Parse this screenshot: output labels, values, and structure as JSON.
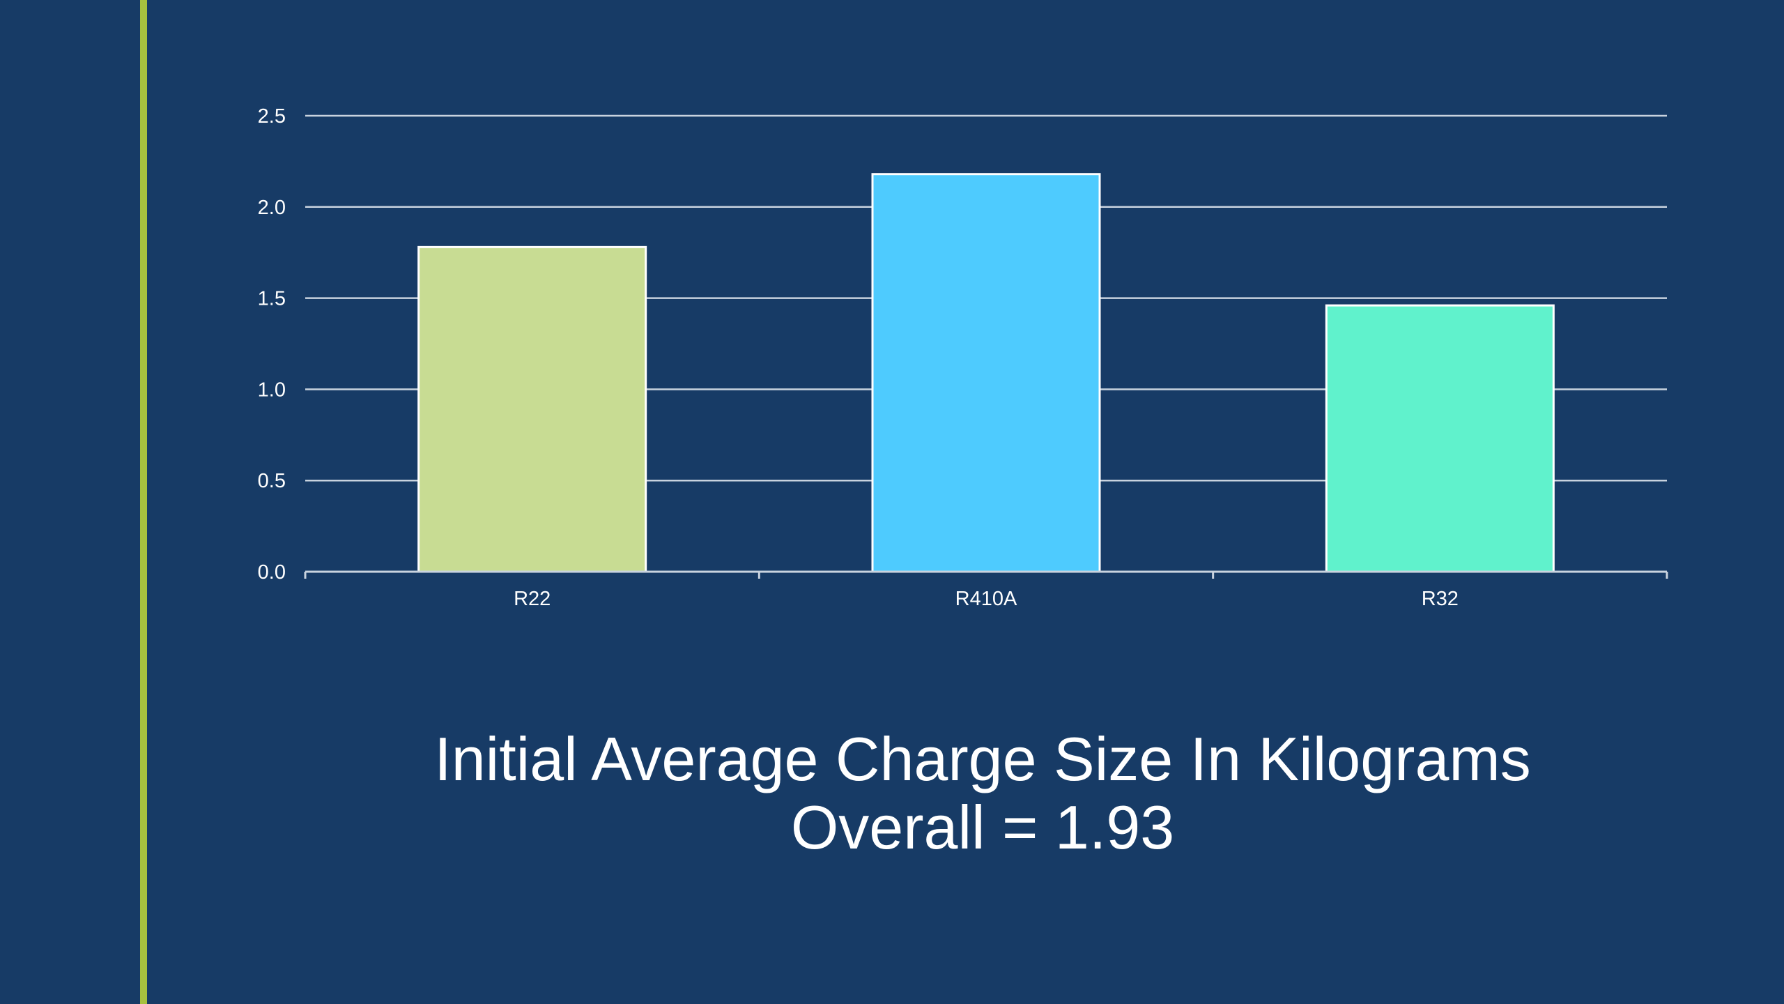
{
  "chart_data": {
    "type": "bar",
    "categories": [
      "R22",
      "R410A",
      "R32"
    ],
    "values": [
      1.78,
      2.18,
      1.46
    ],
    "colors": [
      "#c8dc93",
      "#4ecbfe",
      "#60f2cc"
    ],
    "ylim": [
      0,
      2.5
    ],
    "yticks": [
      "0.0",
      "0.5",
      "1.0",
      "1.5",
      "2.0",
      "2.5"
    ],
    "ytick_values": [
      0,
      0.5,
      1.0,
      1.5,
      2.0,
      2.5
    ],
    "grid": true,
    "legend": "none"
  },
  "caption": {
    "line1": "Initial Average Charge Size In Kilograms",
    "line2": "Overall = 1.93"
  },
  "colors": {
    "background": "#173b66",
    "accent_line": "#a7c13f",
    "gridline": "#c9d3df",
    "text": "#ffffff"
  }
}
